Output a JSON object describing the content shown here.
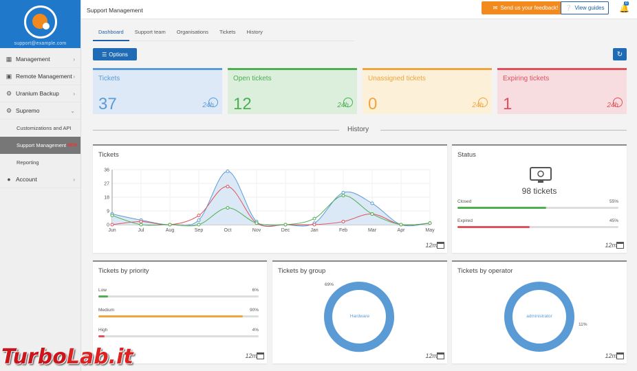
{
  "sidebar": {
    "user_email": "support@example.com",
    "items": [
      {
        "label": "Management",
        "icon": "sitemap-icon"
      },
      {
        "label": "Remote Management",
        "icon": "monitor-icon"
      },
      {
        "label": "Uranium Backup",
        "icon": "gear-icon"
      },
      {
        "label": "Supremo",
        "icon": "gear-icon"
      }
    ],
    "sub_items": [
      {
        "label": "Customizations and API"
      },
      {
        "label": "Support Management",
        "badge": "NEW"
      },
      {
        "label": "Reporting"
      }
    ],
    "account": {
      "label": "Account",
      "icon": "user-icon"
    }
  },
  "topbar": {
    "title": "Support Management",
    "feedback_label": "Send us your feedback!",
    "guides_label": "View guides",
    "notif_count": "0"
  },
  "tabs": [
    "Dashboard",
    "Support team",
    "Organisations",
    "Tickets",
    "History"
  ],
  "options_label": "Options",
  "kpis": [
    {
      "label": "Tickets",
      "value": "37",
      "period": "24h",
      "color": "#5b9bd5",
      "bg": "#dde9f7"
    },
    {
      "label": "Open tickets",
      "value": "12",
      "period": "24h",
      "color": "#4caf50",
      "bg": "#dcefdc"
    },
    {
      "label": "Unassigned tickets",
      "value": "0",
      "period": "24h",
      "color": "#f0a53c",
      "bg": "#fcf0d9"
    },
    {
      "label": "Expiring tickets",
      "value": "1",
      "period": "24h",
      "color": "#e0505a",
      "bg": "#f7dde0"
    }
  ],
  "history_label": "History",
  "tickets_card": {
    "title": "Tickets",
    "period": "12m",
    "chart_data": {
      "type": "line",
      "categories": [
        "Jun",
        "Jul",
        "Aug",
        "Sep",
        "Oct",
        "Nov",
        "Dec",
        "Jan",
        "Feb",
        "Mar",
        "Apr",
        "May"
      ],
      "ylim": [
        0,
        36
      ],
      "yticks": [
        0,
        9,
        18,
        27,
        36
      ],
      "series": [
        {
          "color": "#5b9bd5",
          "values": [
            7,
            3,
            0,
            3,
            35,
            2,
            0,
            1,
            21,
            14,
            0,
            1
          ]
        },
        {
          "color": "#e0505a",
          "values": [
            0,
            2,
            0,
            6,
            25,
            1,
            0,
            0,
            2,
            7,
            0,
            1
          ]
        },
        {
          "color": "#4caf50",
          "values": [
            6,
            0,
            0,
            0,
            11,
            1,
            0,
            4,
            19,
            7,
            0,
            1
          ]
        }
      ]
    }
  },
  "status_card": {
    "title": "Status",
    "total": "98 tickets",
    "closed_label": "Closed",
    "closed_pct": "55%",
    "closed_value": 55,
    "expired_label": "Expired",
    "expired_pct": "45%",
    "expired_value": 45,
    "period": "12m"
  },
  "priority_card": {
    "title": "Tickets by priority",
    "rows": [
      {
        "label": "Low",
        "pct": "6%",
        "value": 6,
        "color": "#4caf50"
      },
      {
        "label": "Medium",
        "pct": "90%",
        "value": 90,
        "color": "#f0a53c"
      },
      {
        "label": "High",
        "pct": "4%",
        "value": 4,
        "color": "#e0505a"
      }
    ],
    "period": "12m"
  },
  "group_card": {
    "title": "Tickets by group",
    "center_label": "Hardware",
    "outer_label": "69%",
    "period": "12m",
    "chart_data": {
      "type": "pie",
      "labels": [
        "Hardware"
      ],
      "values": [
        69
      ]
    }
  },
  "operator_card": {
    "title": "Tickets by operator",
    "center_label": "administrator",
    "outer_label": "11%",
    "period": "12m",
    "chart_data": {
      "type": "pie",
      "labels": [
        "administrator"
      ],
      "values": [
        11
      ]
    }
  },
  "watermark": {
    "part1": "Turbo",
    "part2": "Lab.it"
  }
}
